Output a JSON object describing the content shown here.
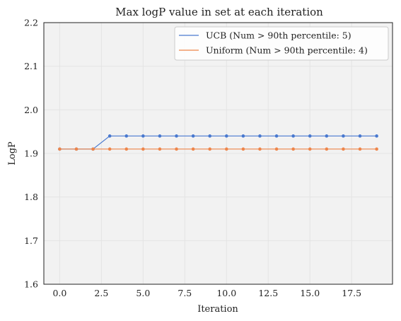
{
  "chart_data": {
    "type": "line",
    "title": "Max logP value in set at each iteration",
    "xlabel": "Iteration",
    "ylabel": "LogP",
    "xlim": [
      -0.95,
      19.95
    ],
    "ylim": [
      1.6,
      2.2
    ],
    "xticks": [
      0.0,
      2.5,
      5.0,
      7.5,
      10.0,
      12.5,
      15.0,
      17.5
    ],
    "xtick_labels": [
      "0.0",
      "2.5",
      "5.0",
      "7.5",
      "10.0",
      "12.5",
      "15.0",
      "17.5"
    ],
    "yticks": [
      1.6,
      1.7,
      1.8,
      1.9,
      2.0,
      2.1,
      2.2
    ],
    "ytick_labels": [
      "1.6",
      "1.7",
      "1.8",
      "1.9",
      "2.0",
      "2.1",
      "2.2"
    ],
    "grid": true,
    "legend_position": "top-right",
    "x": [
      0,
      1,
      2,
      3,
      4,
      5,
      6,
      7,
      8,
      9,
      10,
      11,
      12,
      13,
      14,
      15,
      16,
      17,
      18,
      19
    ],
    "series": [
      {
        "name": "UCB (Num > 90th percentile: 5)",
        "color": "#4878cf",
        "values": [
          1.91,
          1.91,
          1.91,
          1.94,
          1.94,
          1.94,
          1.94,
          1.94,
          1.94,
          1.94,
          1.94,
          1.94,
          1.94,
          1.94,
          1.94,
          1.94,
          1.94,
          1.94,
          1.94,
          1.94
        ]
      },
      {
        "name": "Uniform (Num > 90th percentile: 4)",
        "color": "#ee854a",
        "values": [
          1.91,
          1.91,
          1.91,
          1.91,
          1.91,
          1.91,
          1.91,
          1.91,
          1.91,
          1.91,
          1.91,
          1.91,
          1.91,
          1.91,
          1.91,
          1.91,
          1.91,
          1.91,
          1.91,
          1.91
        ]
      }
    ]
  },
  "colors": {
    "plot_background": "#f2f2f2",
    "grid": "#e4e4e4",
    "frame": "#222222"
  }
}
